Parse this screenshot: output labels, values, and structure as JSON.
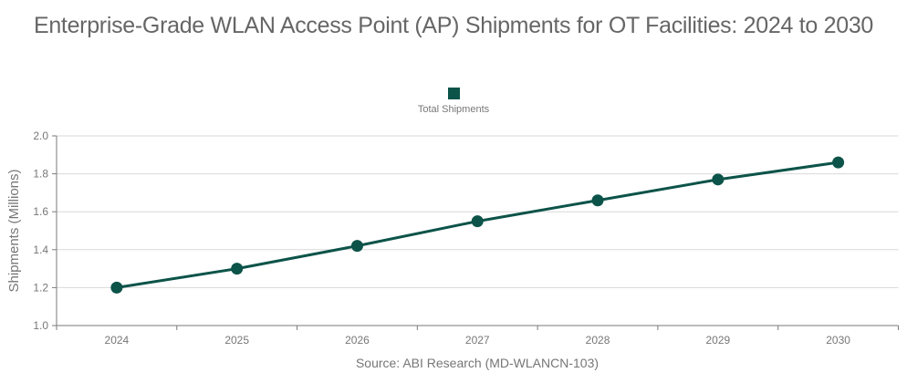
{
  "title": {
    "text": "Enterprise-Grade WLAN Access Point (AP) Shipments for OT Facilities: 2024 to 2030"
  },
  "legend": {
    "items": [
      {
        "label": "Total Shipments",
        "color": "#0c5349"
      }
    ]
  },
  "source_note": "Source: ABI Research (MD-WLANCN-103)",
  "colors": {
    "background": "#ffffff",
    "series": "#0c5349",
    "gridline": "#d9d9d9",
    "axis_line": "#7a7a7a",
    "tick_label": "#777777",
    "axis_title": "#777777",
    "title_text": "#666666",
    "source_text": "#767676"
  },
  "chart_data": {
    "type": "line",
    "title": "Enterprise-Grade WLAN Access Point (AP) Shipments for OT Facilities: 2024 to 2030",
    "categories": [
      "2024",
      "2025",
      "2026",
      "2027",
      "2028",
      "2029",
      "2030"
    ],
    "series": [
      {
        "name": "Total Shipments",
        "color": "#0c5349",
        "marker": "circle",
        "values": [
          1.2,
          1.3,
          1.42,
          1.55,
          1.66,
          1.77,
          1.86
        ]
      }
    ],
    "xlabel": "",
    "ylabel": "Shipments (Millions)",
    "ylim": [
      1.0,
      2.0
    ],
    "yticks": [
      1.0,
      1.2,
      1.4,
      1.6,
      1.8,
      2.0
    ],
    "ytick_labels": [
      "1.0",
      "1.2",
      "1.4",
      "1.6",
      "1.8",
      "2.0"
    ],
    "grid": "horizontal",
    "legend_position": "top"
  }
}
